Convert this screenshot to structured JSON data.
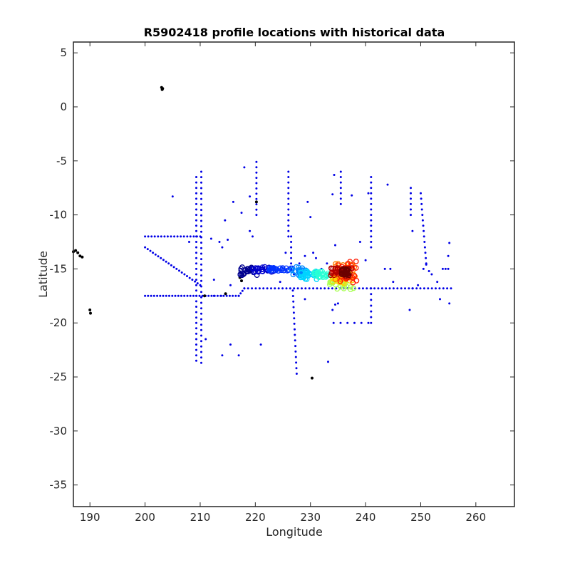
{
  "chart_data": {
    "type": "scatter",
    "title": "R5902418 profile locations with historical data",
    "xlabel": "Longitude",
    "ylabel": "Latitude",
    "xlim": [
      187,
      267
    ],
    "ylim": [
      -37,
      6
    ],
    "xticks": [
      190,
      200,
      210,
      220,
      230,
      240,
      250,
      260
    ],
    "yticks": [
      5,
      0,
      -5,
      -10,
      -15,
      -20,
      -25,
      -30,
      -35
    ],
    "grid": false,
    "legend": "none",
    "colors": {
      "historical": "#0000e6",
      "black": "#000000",
      "axes": "#262626",
      "track_colormap": [
        "#00008f",
        "#0000ff",
        "#0080ff",
        "#00ffff",
        "#80ff80",
        "#ffff00",
        "#ff8000",
        "#ff0000",
        "#800000"
      ]
    },
    "series": [
      {
        "marker": "dot",
        "color": "#0000e6",
        "lines": [
          {
            "from": [
              200,
              -17.5
            ],
            "to": [
              217,
              -17.5
            ],
            "step": 0.55
          },
          {
            "from": [
              217,
              -17.5
            ],
            "to": [
              218,
              -16.8
            ],
            "step": 0.4
          },
          {
            "from": [
              218,
              -16.8
            ],
            "to": [
              255.5,
              -16.8
            ],
            "step": 0.7
          },
          {
            "from": [
              200,
              -12
            ],
            "to": [
              210,
              -12
            ],
            "step": 0.6
          },
          {
            "from": [
              200,
              -13
            ],
            "to": [
              210,
              -16.5
            ],
            "step": 0.5
          },
          {
            "from": [
              209.3,
              -6.5
            ],
            "to": [
              209.3,
              -23.5
            ],
            "step": 0.5
          },
          {
            "from": [
              210.2,
              -6
            ],
            "to": [
              210.2,
              -23.7
            ],
            "step": 0.5
          },
          {
            "from": [
              226,
              -6
            ],
            "to": [
              226,
              -12
            ],
            "step": 0.5
          },
          {
            "from": [
              226.5,
              -12
            ],
            "to": [
              226.5,
              -15
            ],
            "step": 0.5
          },
          {
            "from": [
              226.8,
              -17
            ],
            "to": [
              227.5,
              -24.7
            ],
            "step": 0.5
          },
          {
            "from": [
              220.2,
              -5.1
            ],
            "to": [
              220.2,
              -10
            ],
            "step": 0.5
          },
          {
            "from": [
              241,
              -6.5
            ],
            "to": [
              241,
              -13
            ],
            "step": 0.5
          },
          {
            "from": [
              241,
              -16.8
            ],
            "to": [
              241,
              -20
            ],
            "step": 0.5
          },
          {
            "from": [
              248.2,
              -7.5
            ],
            "to": [
              248.2,
              -10
            ],
            "step": 0.5
          },
          {
            "from": [
              250,
              -8
            ],
            "to": [
              251,
              -14.5
            ],
            "step": 0.5
          },
          {
            "from": [
              234.2,
              -20
            ],
            "to": [
              240.5,
              -20
            ],
            "step": 1.2
          },
          {
            "from": [
              235.5,
              -6
            ],
            "to": [
              235.5,
              -9
            ],
            "step": 0.5
          }
        ],
        "points": [
          [
            205,
            -8.3
          ],
          [
            208,
            -12.5
          ],
          [
            212,
            -12.2
          ],
          [
            212.5,
            -16
          ],
          [
            213.5,
            -12.5
          ],
          [
            214,
            -13
          ],
          [
            214.5,
            -10.5
          ],
          [
            215,
            -12.3
          ],
          [
            215.5,
            -16.5
          ],
          [
            216,
            -8.8
          ],
          [
            217.5,
            -9.8
          ],
          [
            218,
            -5.6
          ],
          [
            219,
            -8.3
          ],
          [
            219,
            -11.5
          ],
          [
            219.5,
            -12
          ],
          [
            211,
            -21.5
          ],
          [
            214,
            -23
          ],
          [
            215.5,
            -22
          ],
          [
            217,
            -23
          ],
          [
            221,
            -22
          ],
          [
            224.5,
            -16.2
          ],
          [
            225.5,
            -13.5
          ],
          [
            227,
            -15.5
          ],
          [
            228,
            -14.5
          ],
          [
            229,
            -13.8
          ],
          [
            229.5,
            -8.8
          ],
          [
            230,
            -10.2
          ],
          [
            230.5,
            -13.5
          ],
          [
            231,
            -14
          ],
          [
            229,
            -17.8
          ],
          [
            233,
            -14.5
          ],
          [
            232,
            -15
          ],
          [
            234,
            -8.1
          ],
          [
            234.3,
            -6.3
          ],
          [
            234.5,
            -12.8
          ],
          [
            234,
            -18.8
          ],
          [
            234.5,
            -18.3
          ],
          [
            235,
            -18.2
          ],
          [
            233.2,
            -23.6
          ],
          [
            237.5,
            -8.2
          ],
          [
            239,
            -12.5
          ],
          [
            240,
            -14.2
          ],
          [
            240.5,
            -8
          ],
          [
            244,
            -7.2
          ],
          [
            244.5,
            -15
          ],
          [
            243.5,
            -15
          ],
          [
            245,
            -16.2
          ],
          [
            248,
            -18.8
          ],
          [
            248.5,
            -16.8
          ],
          [
            248.5,
            -11.5
          ],
          [
            249.5,
            -16.5
          ],
          [
            250.5,
            -15
          ],
          [
            251,
            -14.6
          ],
          [
            251.5,
            -15.2
          ],
          [
            252,
            -15.5
          ],
          [
            253,
            -16.2
          ],
          [
            253.5,
            -17.8
          ],
          [
            254,
            -15
          ],
          [
            254.5,
            -15
          ],
          [
            255,
            -15
          ],
          [
            255,
            -13.8
          ],
          [
            255.2,
            -12.6
          ],
          [
            255.2,
            -18.2
          ],
          [
            212.5,
            -17.5
          ],
          [
            213.8,
            -17.5
          ]
        ]
      },
      {
        "marker": "dot",
        "color": "#000000",
        "points": [
          [
            203,
            1.8
          ],
          [
            203.1,
            1.6
          ],
          [
            203.2,
            1.7
          ],
          [
            187,
            -13.4
          ],
          [
            187.4,
            -13.3
          ],
          [
            187.8,
            -13.5
          ],
          [
            188.2,
            -13.8
          ],
          [
            188.6,
            -13.9
          ],
          [
            190,
            -18.8
          ],
          [
            190.1,
            -19.1
          ],
          [
            220.2,
            -8.8
          ],
          [
            230.3,
            -25.1
          ],
          [
            210.8,
            -17.5
          ],
          [
            214.6,
            -17.3
          ],
          [
            217.2,
            -15.8
          ],
          [
            217.5,
            -16.1
          ],
          [
            217.8,
            -15.6
          ]
        ]
      }
    ],
    "track": {
      "marker": "circle",
      "note": "profile locations colored by time",
      "segments": [
        {
          "lon": [
            217,
            220.5
          ],
          "lat": [
            -14.8,
            -15.6
          ],
          "color": "#00008f"
        },
        {
          "lon": [
            219.5,
            223.5
          ],
          "lat": [
            -14.8,
            -15.3
          ],
          "color": "#0000cc"
        },
        {
          "lon": [
            222.5,
            227.5
          ],
          "lat": [
            -14.9,
            -15.2
          ],
          "color": "#0033ff"
        },
        {
          "lon": [
            226.5,
            229.5
          ],
          "lat": [
            -14.8,
            -15.6
          ],
          "color": "#0088ff"
        },
        {
          "lon": [
            228,
            231.5
          ],
          "lat": [
            -15.2,
            -16
          ],
          "color": "#00d4ff"
        },
        {
          "lon": [
            230.5,
            233.5
          ],
          "lat": [
            -15.2,
            -15.8
          ],
          "color": "#2affd4"
        },
        {
          "lon": [
            233.5,
            238
          ],
          "lat": [
            -16,
            -16.9
          ],
          "color": "#aaff55"
        },
        {
          "lon": [
            234,
            238
          ],
          "lat": [
            -15.4,
            -16.4
          ],
          "color": "#ffd400"
        },
        {
          "lon": [
            234.5,
            238.2
          ],
          "lat": [
            -14.5,
            -16
          ],
          "color": "#ff7f00"
        },
        {
          "lon": [
            234,
            238.5
          ],
          "lat": [
            -14.3,
            -16.3
          ],
          "color": "#ff1a00"
        },
        {
          "lon": [
            233.5,
            237.5
          ],
          "lat": [
            -14.8,
            -15.8
          ],
          "color": "#b30000"
        },
        {
          "lon": [
            235.5,
            237
          ],
          "lat": [
            -15,
            -15.6
          ],
          "color": "#6b0000"
        }
      ]
    }
  }
}
